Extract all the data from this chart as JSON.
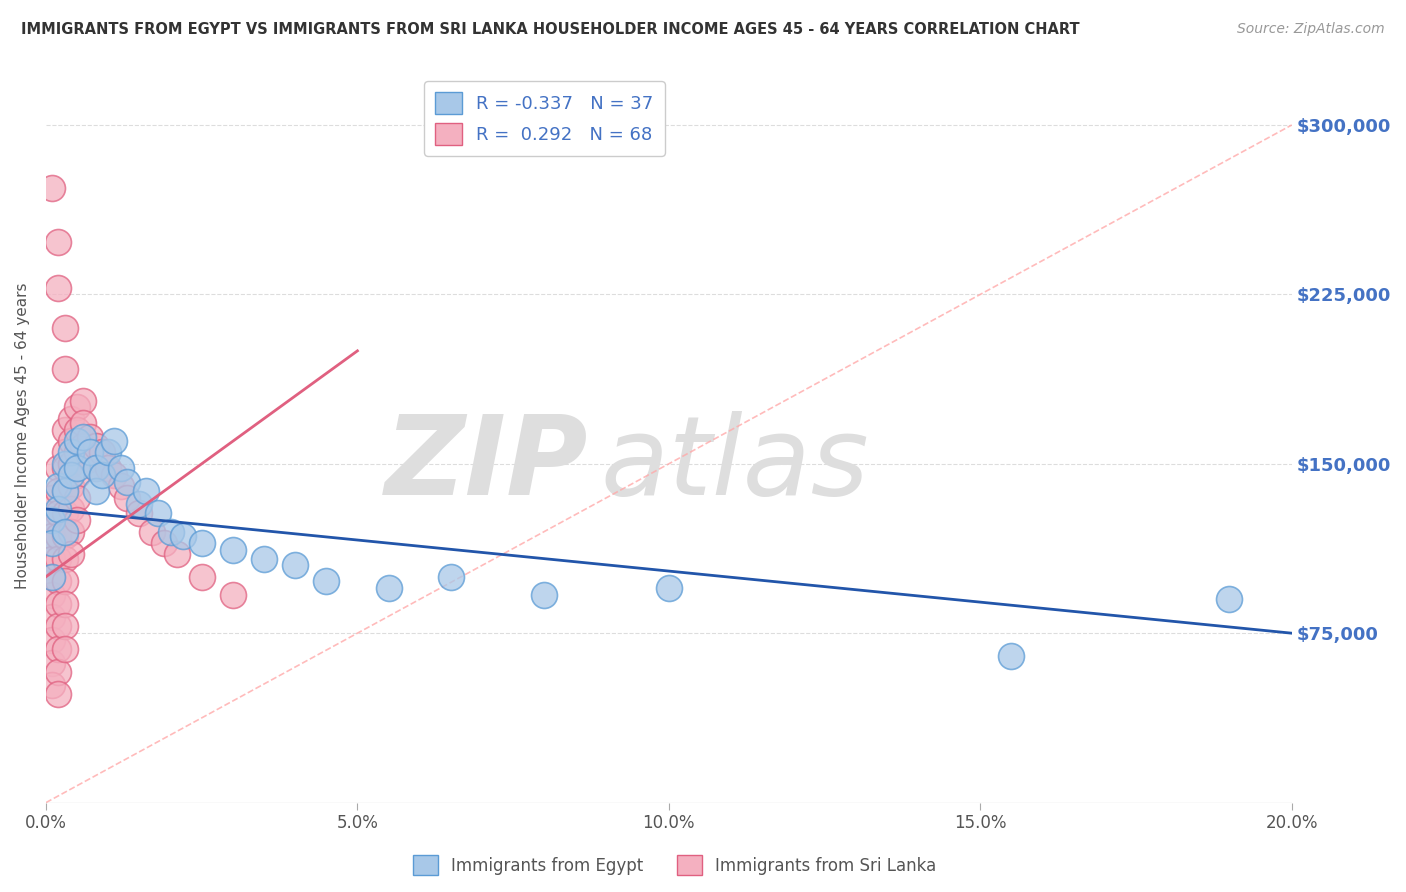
{
  "title": "IMMIGRANTS FROM EGYPT VS IMMIGRANTS FROM SRI LANKA HOUSEHOLDER INCOME AGES 45 - 64 YEARS CORRELATION CHART",
  "source": "Source: ZipAtlas.com",
  "ylabel": "Householder Income Ages 45 - 64 years",
  "xlim": [
    0.0,
    0.2
  ],
  "ylim": [
    0,
    325000
  ],
  "yticks": [
    0,
    75000,
    150000,
    225000,
    300000
  ],
  "ytick_labels": [
    "",
    "$75,000",
    "$150,000",
    "$225,000",
    "$300,000"
  ],
  "xticks": [
    0.0,
    0.05,
    0.1,
    0.15,
    0.2
  ],
  "xtick_labels": [
    "0.0%",
    "5.0%",
    "10.0%",
    "15.0%",
    "20.0%"
  ],
  "egypt_color": "#A8C8E8",
  "egypt_edge_color": "#5B9BD5",
  "egypt_line_color": "#2255AA",
  "srilanka_color": "#F4B0C0",
  "srilanka_edge_color": "#E06080",
  "srilanka_line_color": "#E06080",
  "egypt_R": -0.337,
  "egypt_N": 37,
  "srilanka_R": 0.292,
  "srilanka_N": 68,
  "egypt_x": [
    0.001,
    0.001,
    0.001,
    0.002,
    0.002,
    0.003,
    0.003,
    0.003,
    0.004,
    0.004,
    0.005,
    0.005,
    0.006,
    0.007,
    0.008,
    0.008,
    0.009,
    0.01,
    0.011,
    0.012,
    0.013,
    0.015,
    0.016,
    0.018,
    0.02,
    0.022,
    0.025,
    0.03,
    0.035,
    0.04,
    0.045,
    0.055,
    0.065,
    0.08,
    0.1,
    0.155,
    0.19
  ],
  "egypt_y": [
    125000,
    115000,
    100000,
    140000,
    130000,
    150000,
    138000,
    120000,
    155000,
    145000,
    160000,
    148000,
    162000,
    155000,
    148000,
    138000,
    145000,
    155000,
    160000,
    148000,
    142000,
    132000,
    138000,
    128000,
    120000,
    118000,
    115000,
    112000,
    108000,
    105000,
    98000,
    95000,
    100000,
    92000,
    95000,
    65000,
    90000
  ],
  "srilanka_x": [
    0.001,
    0.001,
    0.001,
    0.001,
    0.001,
    0.001,
    0.001,
    0.001,
    0.001,
    0.001,
    0.002,
    0.002,
    0.002,
    0.002,
    0.002,
    0.002,
    0.002,
    0.002,
    0.002,
    0.002,
    0.002,
    0.003,
    0.003,
    0.003,
    0.003,
    0.003,
    0.003,
    0.003,
    0.003,
    0.003,
    0.003,
    0.003,
    0.004,
    0.004,
    0.004,
    0.004,
    0.004,
    0.004,
    0.004,
    0.005,
    0.005,
    0.005,
    0.005,
    0.005,
    0.005,
    0.006,
    0.006,
    0.006,
    0.007,
    0.007,
    0.008,
    0.008,
    0.009,
    0.01,
    0.011,
    0.012,
    0.013,
    0.015,
    0.017,
    0.019,
    0.021,
    0.025,
    0.03,
    0.001,
    0.002,
    0.003,
    0.002,
    0.003
  ],
  "srilanka_y": [
    135000,
    125000,
    118000,
    108000,
    100000,
    92000,
    82000,
    72000,
    62000,
    52000,
    148000,
    138000,
    128000,
    118000,
    108000,
    98000,
    88000,
    78000,
    68000,
    58000,
    48000,
    165000,
    155000,
    148000,
    138000,
    128000,
    118000,
    108000,
    98000,
    88000,
    78000,
    68000,
    170000,
    160000,
    150000,
    140000,
    130000,
    120000,
    110000,
    175000,
    165000,
    155000,
    145000,
    135000,
    125000,
    178000,
    168000,
    158000,
    162000,
    152000,
    158000,
    148000,
    155000,
    148000,
    145000,
    140000,
    135000,
    128000,
    120000,
    115000,
    110000,
    100000,
    92000,
    272000,
    248000,
    210000,
    228000,
    192000
  ],
  "background_color": "#FFFFFF",
  "grid_color": "#DDDDDD",
  "ref_line_color": "#FFAAAA",
  "watermark_color": "#DEDEDE"
}
